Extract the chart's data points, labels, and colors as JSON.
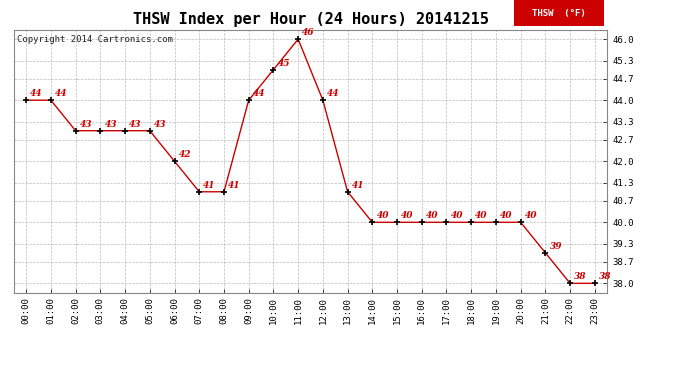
{
  "title": "THSW Index per Hour (24 Hours) 20141215",
  "copyright": "Copyright 2014 Cartronics.com",
  "legend_label": "THSW  (°F)",
  "hours": [
    0,
    1,
    2,
    3,
    4,
    5,
    6,
    7,
    8,
    9,
    10,
    11,
    12,
    13,
    14,
    15,
    16,
    17,
    18,
    19,
    20,
    21,
    22,
    23
  ],
  "values": [
    44,
    44,
    43,
    43,
    43,
    43,
    42,
    41,
    41,
    44,
    45,
    46,
    44,
    41,
    40,
    40,
    40,
    40,
    40,
    40,
    40,
    39,
    38,
    38
  ],
  "xlabels": [
    "00:00",
    "01:00",
    "02:00",
    "03:00",
    "04:00",
    "05:00",
    "06:00",
    "07:00",
    "08:00",
    "09:00",
    "10:00",
    "11:00",
    "12:00",
    "13:00",
    "14:00",
    "15:00",
    "16:00",
    "17:00",
    "18:00",
    "19:00",
    "20:00",
    "21:00",
    "22:00",
    "23:00"
  ],
  "ylim": [
    37.7,
    46.3
  ],
  "yticks": [
    38.0,
    38.7,
    39.3,
    40.0,
    40.7,
    41.3,
    42.0,
    42.7,
    43.3,
    44.0,
    44.7,
    45.3,
    46.0
  ],
  "ytick_labels": [
    "38.0",
    "38.7",
    "39.3",
    "40.0",
    "40.7",
    "41.3",
    "42.0",
    "42.7",
    "43.3",
    "44.0",
    "44.7",
    "45.3",
    "46.0"
  ],
  "line_color": "#cc0000",
  "marker_color": "#000000",
  "label_color": "#cc0000",
  "bg_color": "#ffffff",
  "plot_bg_color": "#ffffff",
  "grid_color": "#bbbbbb",
  "legend_bg": "#cc0000",
  "legend_text_color": "#ffffff",
  "title_fontsize": 11,
  "label_fontsize": 6.5,
  "tick_fontsize": 6.5,
  "copyright_fontsize": 6.5
}
